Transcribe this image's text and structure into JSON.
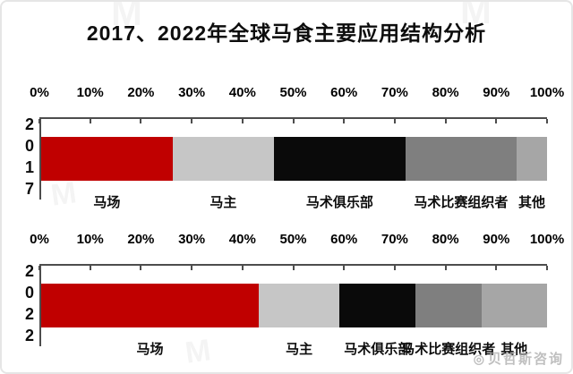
{
  "title": "2017、2022年全球马食主要应用结构分析",
  "watermark": {
    "icon": "◎",
    "text": "贝哲斯咨询",
    "bg_glyph": "M"
  },
  "chart_data": [
    {
      "type": "bar",
      "variant": "horizontal-stacked",
      "year": "2017",
      "ylabel": "2017",
      "xlabel": "",
      "xlim": [
        0,
        100
      ],
      "x_ticks": [
        0,
        10,
        20,
        30,
        40,
        50,
        60,
        70,
        80,
        90,
        100
      ],
      "tick_unit": "%",
      "grid": false,
      "legend_position": "category labels below bar",
      "categories": [
        "马场",
        "马主",
        "马术俱乐部",
        "马术比赛组织者",
        "其他"
      ],
      "values": [
        26,
        20,
        26,
        22,
        6
      ],
      "colors": [
        "#c00000",
        "#c6c6c6",
        "#0a0a0a",
        "#7f7f7f",
        "#a6a6a6"
      ]
    },
    {
      "type": "bar",
      "variant": "horizontal-stacked",
      "year": "2022",
      "ylabel": "2022",
      "xlabel": "",
      "xlim": [
        0,
        100
      ],
      "x_ticks": [
        0,
        10,
        20,
        30,
        40,
        50,
        60,
        70,
        80,
        90,
        100
      ],
      "tick_unit": "%",
      "grid": false,
      "legend_position": "category labels below bar",
      "categories": [
        "马场",
        "马主",
        "马术俱乐部",
        "马术比赛组织者",
        "其他"
      ],
      "values": [
        43,
        16,
        15,
        13,
        13
      ],
      "colors": [
        "#c00000",
        "#c6c6c6",
        "#0a0a0a",
        "#7f7f7f",
        "#a6a6a6"
      ]
    }
  ]
}
